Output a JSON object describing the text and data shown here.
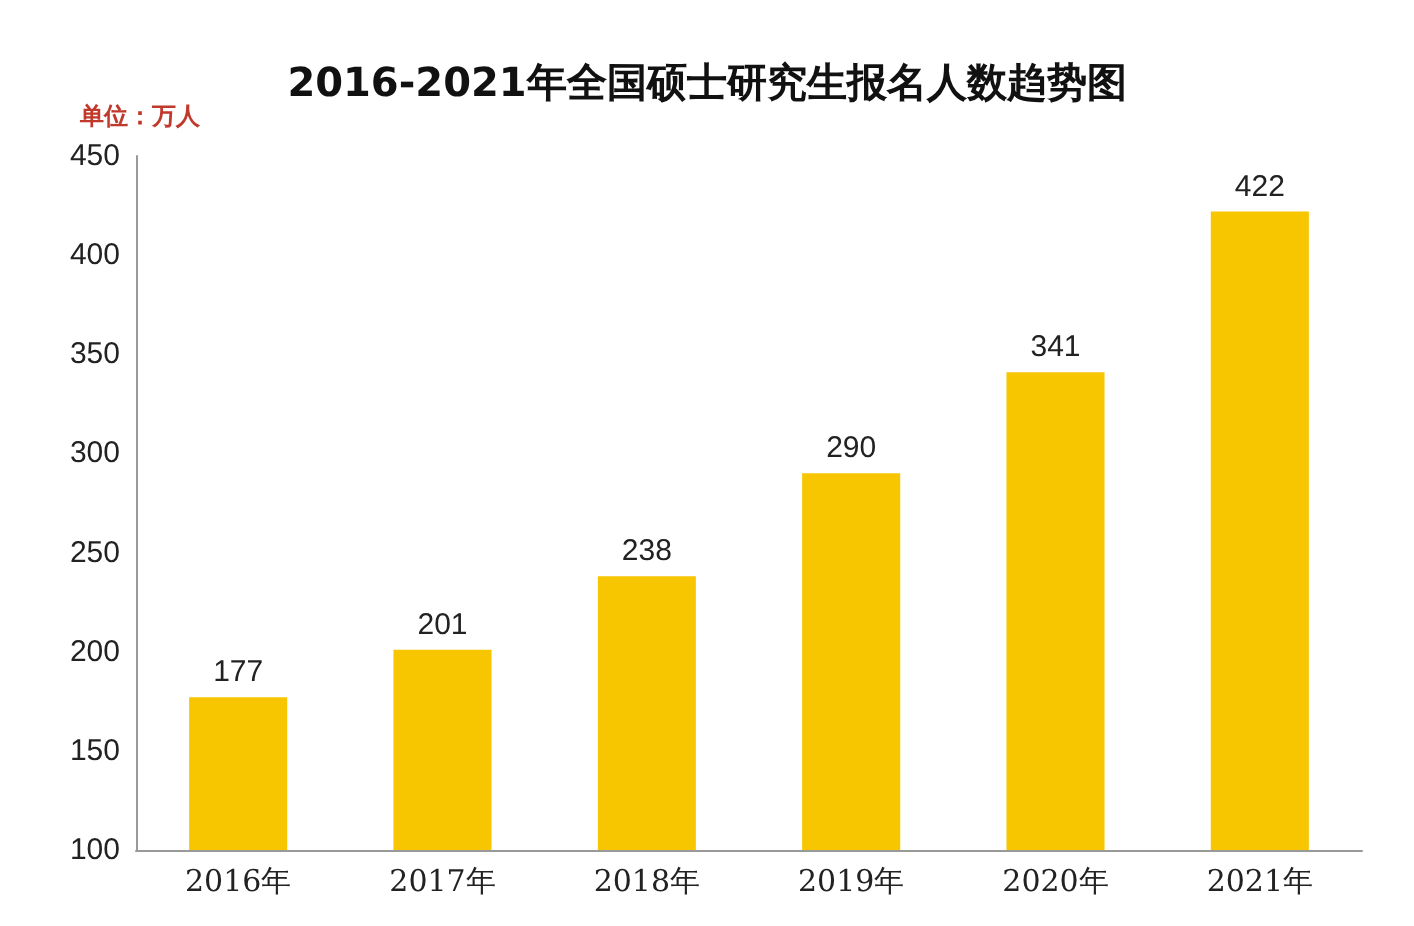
{
  "chart_data": {
    "type": "bar",
    "title": "2016-2021年全国硕士研究生报名人数趋势图",
    "annotations": [
      "单位：万人"
    ],
    "categories": [
      "2016年",
      "2017年",
      "2018年",
      "2019年",
      "2020年",
      "2021年"
    ],
    "values": [
      177,
      201,
      238,
      290,
      341,
      422
    ],
    "color": "#f7c600",
    "ylim": [
      100,
      450
    ],
    "yticks": [
      100,
      150,
      200,
      250,
      300,
      350,
      400,
      450
    ],
    "grid": false,
    "data_labels": true
  }
}
